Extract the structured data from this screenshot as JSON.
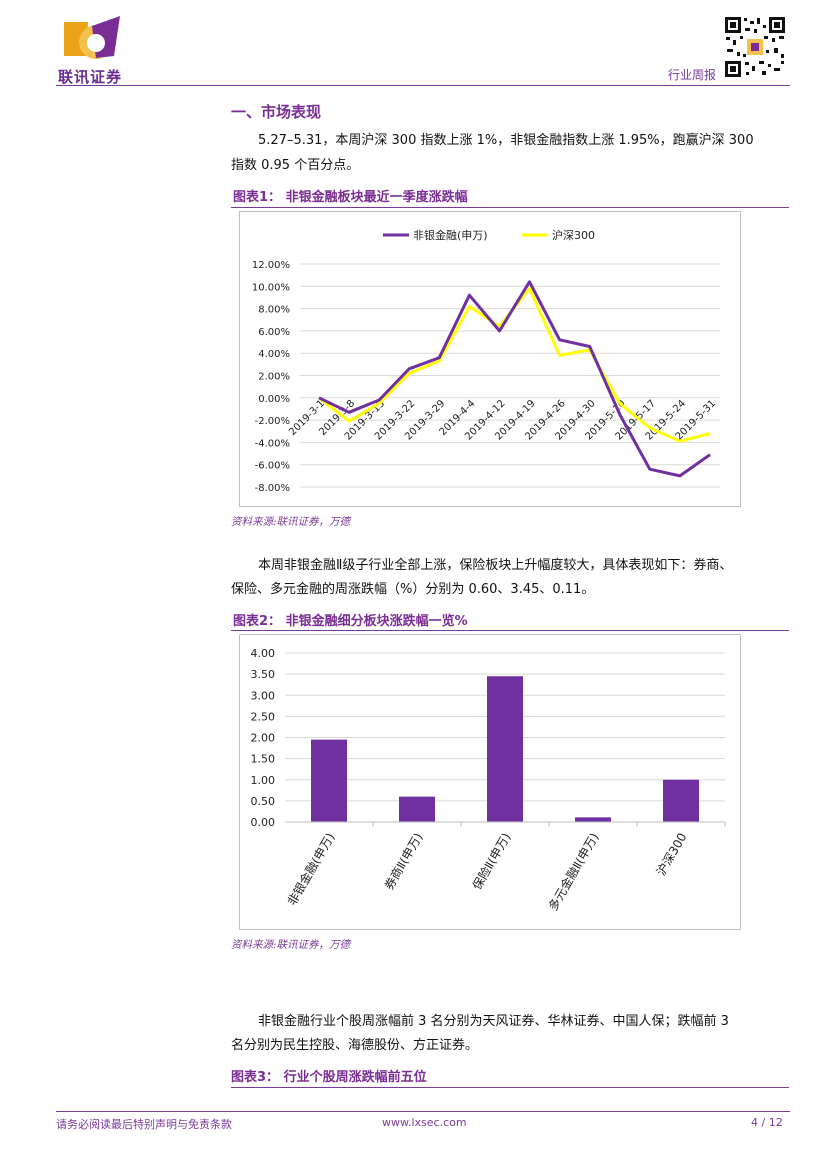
{
  "header": {
    "logo_text": "联讯证券",
    "report_type": "行业周报"
  },
  "section": {
    "title": "一、市场表现",
    "para1": "5.27–5.31，本周沪深 300 指数上涨 1%，非银金融指数上涨 1.95%，跑赢沪深 300",
    "para1b": "指数 0.95 个百分点。",
    "fig1_title": "图表1：  非银金融板块最近一季度涨跌幅",
    "source1": "资料来源:联讯证券，万德",
    "para2": "本周非银金融Ⅱ级子行业全部上涨，保险板块上升幅度较大，具体表现如下：券商、",
    "para2b": "保险、多元金融的周涨跌幅（%）分别为 0.60、3.45、0.11。",
    "fig2_title": "图表2：  非银金融细分板块涨跌幅一览%",
    "source2": "资料来源:联讯证券，万德",
    "para3": "非银金融行业个股周涨幅前 3 名分别为天风证券、华林证券、中国人保；跌幅前 3",
    "para3b": "名分别为民生控股、海德股份、方正证券。",
    "fig3_title": "图表3：  行业个股周涨跌幅前五位"
  },
  "footer": {
    "disclaimer": "请务必阅读最后特别声明与免责条款",
    "website": "www.lxsec.com",
    "page": "4 / 12"
  },
  "chart_data": [
    {
      "type": "line",
      "x": [
        "2019-3-1",
        "2019-3-8",
        "2019-3-15",
        "2019-3-22",
        "2019-3-29",
        "2019-4-4",
        "2019-4-12",
        "2019-4-19",
        "2019-4-26",
        "2019-4-30",
        "2019-5-10",
        "2019-5-17",
        "2019-5-24",
        "2019-5-31"
      ],
      "series": [
        {
          "name": "非银金融(申万)",
          "color": "#7030a0",
          "values": [
            0.0,
            -1.3,
            -0.2,
            2.6,
            3.6,
            9.2,
            6.0,
            10.4,
            5.2,
            4.6,
            -1.5,
            -6.4,
            -7.0,
            -5.1
          ]
        },
        {
          "name": "沪深300",
          "color": "#ffff00",
          "values": [
            0.0,
            -2.1,
            -0.5,
            2.2,
            3.3,
            8.2,
            6.4,
            9.8,
            3.8,
            4.3,
            -0.5,
            -2.7,
            -3.9,
            -3.2
          ]
        }
      ],
      "yticks": [
        "12.00%",
        "10.00%",
        "8.00%",
        "6.00%",
        "4.00%",
        "2.00%",
        "0.00%",
        "-2.00%",
        "-4.00%",
        "-6.00%",
        "-8.00%"
      ],
      "ylim": [
        -8,
        12
      ],
      "legend": "top",
      "grid": true
    },
    {
      "type": "bar",
      "categories": [
        "非银金融(申万)",
        "券商Ⅱ(申万)",
        "保险Ⅱ(申万)",
        "多元金融Ⅱ(申万)",
        "沪深300"
      ],
      "values": [
        1.95,
        0.6,
        3.45,
        0.11,
        1.0
      ],
      "color": "#7030a0",
      "yticks": [
        "4.00",
        "3.50",
        "3.00",
        "2.50",
        "2.00",
        "1.50",
        "1.00",
        "0.50",
        "0.00"
      ],
      "ylim": [
        0,
        4
      ],
      "grid": true
    }
  ]
}
